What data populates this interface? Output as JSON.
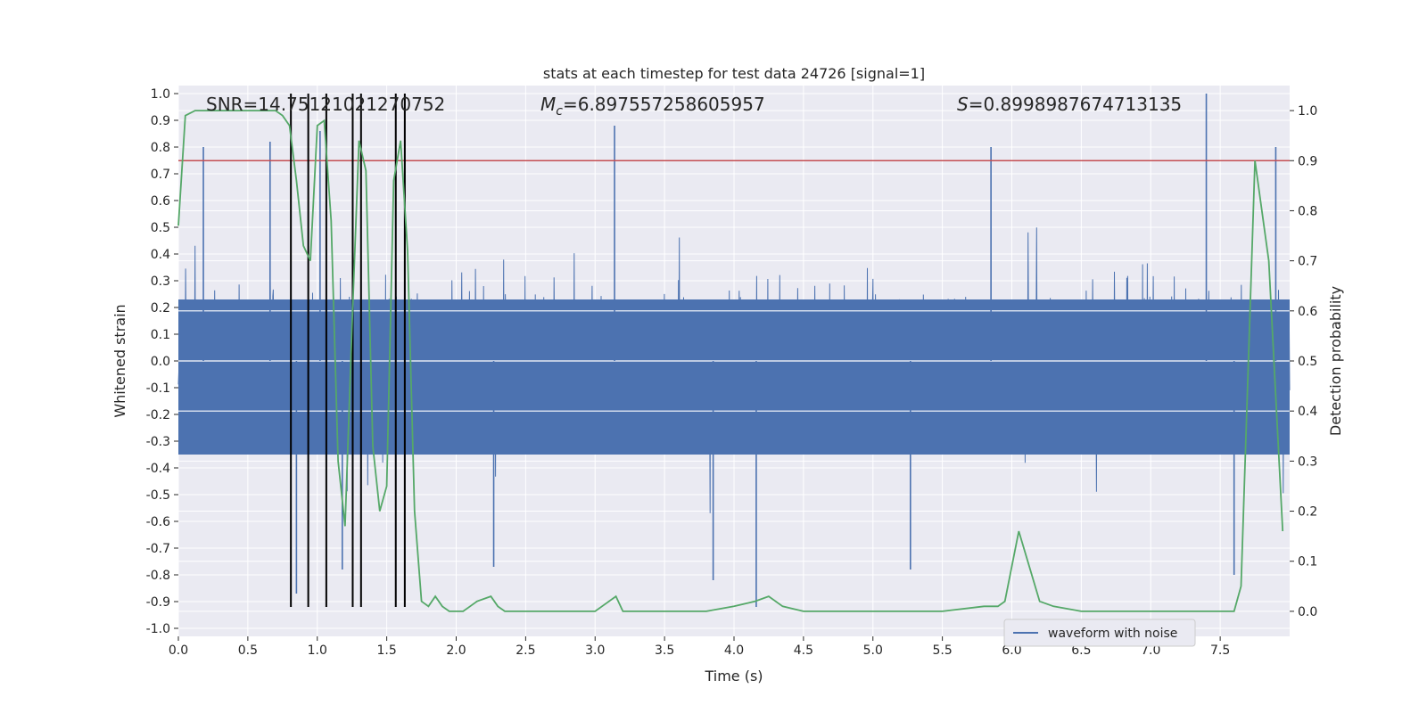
{
  "chart_data": {
    "type": "line",
    "title": "stats at each timestep for test data 24726 [signal=1]",
    "xlabel": "Time (s)",
    "ylabel": "Whitened strain",
    "y2label": "Detection probability",
    "xlim": [
      0.0,
      8.0
    ],
    "ylim": [
      -1.03,
      1.03
    ],
    "y2lim": [
      -0.05,
      1.05
    ],
    "xticks": [
      "0.0",
      "0.5",
      "1.0",
      "1.5",
      "2.0",
      "2.5",
      "3.0",
      "3.5",
      "4.0",
      "4.5",
      "5.0",
      "5.5",
      "6.0",
      "6.5",
      "7.0",
      "7.5"
    ],
    "yticks": [
      "1.0",
      "0.9",
      "0.8",
      "0.7",
      "0.6",
      "0.5",
      "0.4",
      "0.3",
      "0.2",
      "0.1",
      "0.0",
      "-0.1",
      "-0.2",
      "-0.3",
      "-0.4",
      "-0.5",
      "-0.6",
      "-0.7",
      "-0.8",
      "-0.9",
      "-1.0"
    ],
    "y2ticks": [
      "1.0",
      "0.9",
      "0.8",
      "0.7",
      "0.6",
      "0.5",
      "0.4",
      "0.3",
      "0.2",
      "0.1",
      "0.0"
    ],
    "grid": true,
    "legend": {
      "position": "lower-right",
      "entries": [
        "waveform with noise"
      ]
    },
    "annotations": {
      "snr_text": "SNR=14.75121021270752",
      "mc_label": "M",
      "mc_subscript": "c",
      "mc_value": "=6.897557258605957",
      "s_label": "S",
      "s_value": "=0.8998987674713135"
    },
    "threshold": {
      "value": 0.9,
      "axis": "y2",
      "color": "#c44e52"
    },
    "vertical_lines": {
      "x": [
        0.81,
        0.935,
        1.065,
        1.255,
        1.315,
        1.565,
        1.63
      ],
      "y_range": [
        -0.92,
        1.0
      ],
      "color": "#000000"
    },
    "series": [
      {
        "name": "waveform with noise",
        "color": "#4c72b0",
        "description_envelope": "dense noise",
        "spikes": [
          {
            "x": 0.18,
            "y": 0.8
          },
          {
            "x": 0.66,
            "y": 0.82
          },
          {
            "x": 1.02,
            "y": 0.86
          },
          {
            "x": 3.14,
            "y": 0.88
          },
          {
            "x": 5.85,
            "y": 0.8
          },
          {
            "x": 7.4,
            "y": 1.0
          },
          {
            "x": 7.9,
            "y": 0.8
          },
          {
            "x": 0.85,
            "y": -0.87
          },
          {
            "x": 1.18,
            "y": -0.78
          },
          {
            "x": 3.85,
            "y": -0.82
          },
          {
            "x": 4.16,
            "y": -0.92
          },
          {
            "x": 5.27,
            "y": -0.78
          },
          {
            "x": 2.27,
            "y": -0.77
          },
          {
            "x": 7.6,
            "y": -0.8
          }
        ]
      },
      {
        "name": "",
        "color": "#55a868",
        "axis": "y2",
        "x": [
          0.0,
          0.05,
          0.12,
          0.3,
          0.55,
          0.7,
          0.75,
          0.8,
          0.85,
          0.9,
          0.95,
          1.0,
          1.05,
          1.1,
          1.15,
          1.2,
          1.25,
          1.3,
          1.35,
          1.4,
          1.45,
          1.5,
          1.55,
          1.6,
          1.65,
          1.7,
          1.75,
          1.8,
          1.85,
          1.9,
          1.95,
          2.0,
          2.05,
          2.1,
          2.15,
          2.25,
          2.3,
          2.35,
          2.45,
          2.6,
          2.8,
          3.0,
          3.05,
          3.15,
          3.2,
          3.3,
          3.5,
          3.8,
          4.0,
          4.15,
          4.25,
          4.35,
          4.5,
          5.0,
          5.5,
          5.8,
          5.9,
          5.95,
          6.05,
          6.2,
          6.3,
          6.5,
          7.0,
          7.5,
          7.6,
          7.65,
          7.75,
          7.85,
          7.95
        ],
        "y": [
          0.77,
          0.99,
          1.0,
          1.0,
          1.0,
          1.0,
          0.99,
          0.97,
          0.86,
          0.73,
          0.7,
          0.97,
          0.98,
          0.78,
          0.3,
          0.17,
          0.57,
          0.94,
          0.88,
          0.33,
          0.2,
          0.25,
          0.86,
          0.94,
          0.72,
          0.2,
          0.02,
          0.01,
          0.03,
          0.01,
          0.0,
          0.0,
          0.0,
          0.01,
          0.02,
          0.03,
          0.01,
          0.0,
          0.0,
          0.0,
          0.0,
          0.0,
          0.01,
          0.03,
          0.0,
          0.0,
          0.0,
          0.0,
          0.01,
          0.02,
          0.03,
          0.01,
          0.0,
          0.0,
          0.0,
          0.01,
          0.01,
          0.02,
          0.16,
          0.02,
          0.01,
          0.0,
          0.0,
          0.0,
          0.0,
          0.05,
          0.9,
          0.7,
          0.16
        ]
      }
    ]
  }
}
